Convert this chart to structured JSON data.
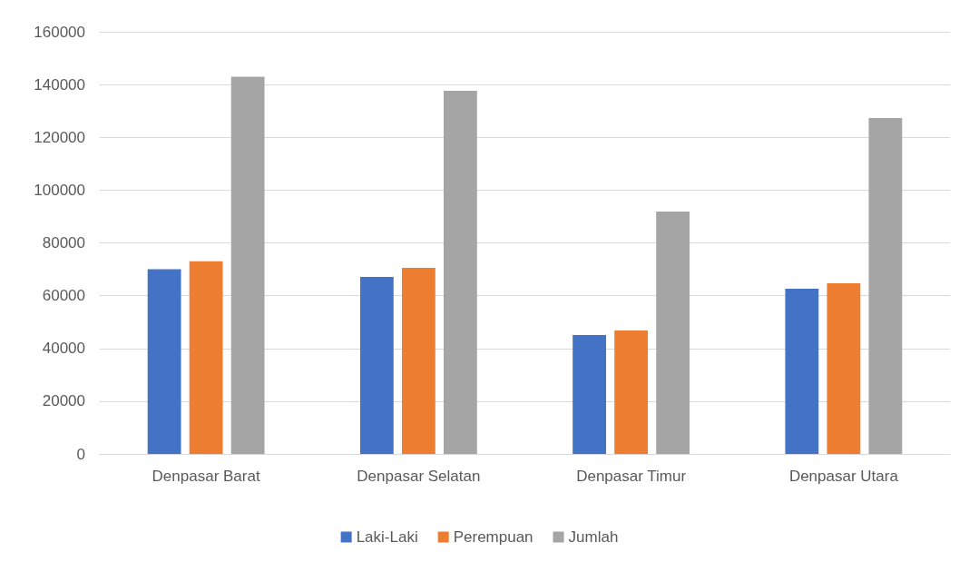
{
  "chart_data": {
    "type": "bar",
    "categories": [
      "Denpasar Barat",
      "Denpasar Selatan",
      "Denpasar Timur",
      "Denpasar Utara"
    ],
    "series": [
      {
        "name": "Laki-Laki",
        "color": "#4472c4",
        "values": [
          70000,
          67100,
          45100,
          62600
        ]
      },
      {
        "name": "Perempuan",
        "color": "#ed7d31",
        "values": [
          73000,
          70500,
          46800,
          64700
        ]
      },
      {
        "name": "Jumlah",
        "color": "#a5a5a5",
        "values": [
          143000,
          137600,
          91900,
          127300
        ]
      }
    ],
    "ylim": [
      0,
      160000
    ],
    "yticks": [
      0,
      20000,
      40000,
      60000,
      80000,
      100000,
      120000,
      140000,
      160000
    ],
    "grid": "y",
    "legend": "bottom"
  }
}
